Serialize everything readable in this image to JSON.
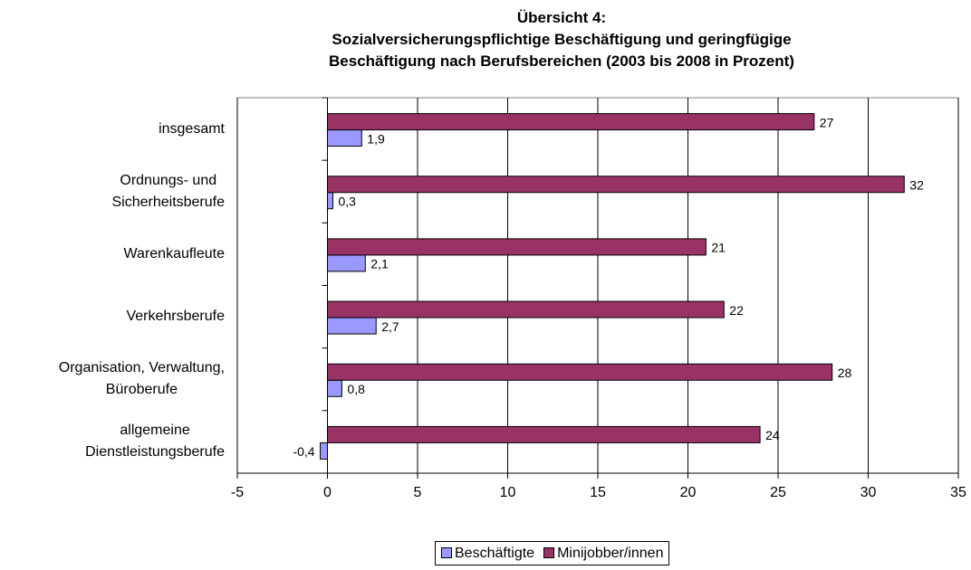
{
  "chart_data": {
    "type": "bar",
    "orientation": "horizontal",
    "title": "Übersicht 4:\nSozialversicherungspflichtige Beschäftigung und geringfügige\nBeschäftigung nach Berufsbereichen (2003 bis 2008 in Prozent)",
    "categories": [
      "insgesamt",
      "Ordnungs- und\nSicherheitsberufe",
      "Warenkaufleute",
      "Verkehrsberufe",
      "Organisation, Verwaltung,\nBüroberufe",
      "allgemeine\nDienstleistungsberufe"
    ],
    "series": [
      {
        "name": "Beschäftigte",
        "color": "#9999ff",
        "values": [
          1.9,
          0.3,
          2.1,
          2.7,
          0.8,
          -0.4
        ],
        "value_labels": [
          "1,9",
          "0,3",
          "2,1",
          "2,7",
          "0,8",
          "-0,4"
        ]
      },
      {
        "name": "Minijobber/innen",
        "color": "#993366",
        "values": [
          27,
          32,
          21,
          22,
          28,
          24
        ]
      }
    ],
    "xlim": [
      -5,
      35
    ],
    "xticks": [
      -5,
      0,
      5,
      10,
      15,
      20,
      25,
      30,
      35
    ],
    "grid": true,
    "legend": "bottom"
  }
}
